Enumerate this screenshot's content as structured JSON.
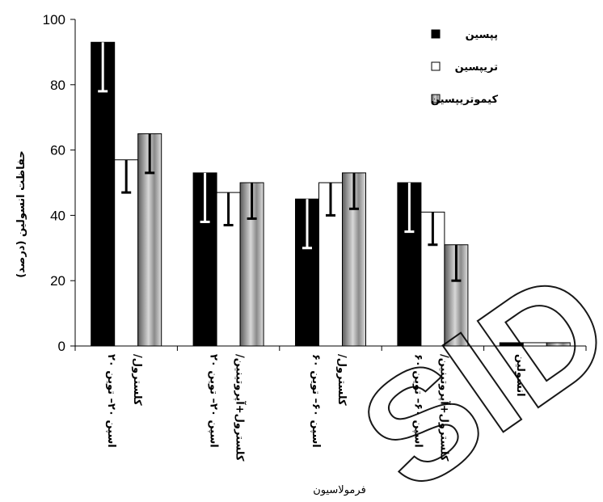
{
  "chart_data": {
    "type": "bar",
    "categories": [
      [
        "اسپن ۲۰– توین ۲۰",
        "/کلسترول"
      ],
      [
        "اسپن ۲۰– توین ۲۰",
        "/کلسترول+آپروتینین"
      ],
      [
        "اسپن ۶۰– توین ۶۰",
        "/کلسترول"
      ],
      [
        "اسپن ۶۰– توین ۶۰",
        "/کلسترول+آپروتینین"
      ],
      [
        "انسولین",
        ""
      ]
    ],
    "series": [
      {
        "name": "پپسین",
        "values": [
          93,
          53,
          45,
          50,
          1
        ],
        "err_low": [
          15,
          15,
          15,
          15,
          0
        ],
        "color": "#000000"
      },
      {
        "name": "تریپسین",
        "values": [
          57,
          47,
          50,
          41,
          1
        ],
        "err_low": [
          10,
          10,
          10,
          10,
          0
        ],
        "color": "#ffffff"
      },
      {
        "name": "کیموتریپسین",
        "values": [
          65,
          50,
          53,
          31,
          1
        ],
        "err_low": [
          12,
          11,
          11,
          11,
          0
        ],
        "color": "#a8a8a8"
      }
    ],
    "yticks": [
      "0",
      "20",
      "40",
      "60",
      "80",
      "100"
    ],
    "ylim": [
      0,
      100
    ],
    "ylabel": "حفاظت انسولین (درصد)",
    "xlabel": "فرمولاسیون",
    "legend_position": "top-right",
    "grid": false
  }
}
